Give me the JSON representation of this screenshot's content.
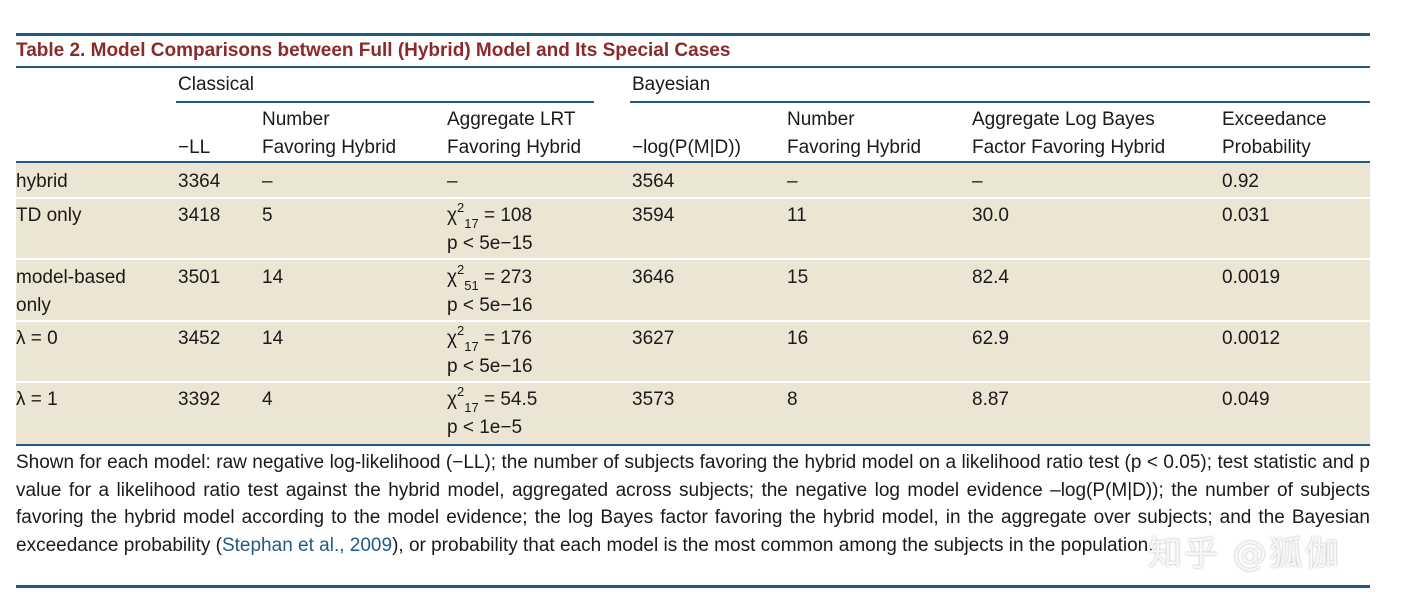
{
  "title": "Table 2.  Model Comparisons between Full (Hybrid) Model and Its Special Cases",
  "groups": {
    "classical": "Classical",
    "bayesian": "Bayesian"
  },
  "columns": {
    "ll": "−LL",
    "num_fav_1": "Number",
    "num_fav_2": "Favoring Hybrid",
    "lrt_1": "Aggregate LRT",
    "lrt_2": "Favoring Hybrid",
    "logp": "−log(P(M|D))",
    "num_bayes_1": "Number",
    "num_bayes_2": "Favoring Hybrid",
    "lbf_1": "Aggregate Log Bayes",
    "lbf_2": "Factor Favoring Hybrid",
    "exc_1": "Exceedance",
    "exc_2": "Probability"
  },
  "rows": [
    {
      "model": "hybrid",
      "model2": "",
      "ll": "3364",
      "nfav": "–",
      "chi": "",
      "df": "",
      "stat": "–",
      "p": "",
      "logp": "3564",
      "nbayes": "–",
      "lbf": "–",
      "exc": "0.92"
    },
    {
      "model": "TD only",
      "model2": "",
      "ll": "3418",
      "nfav": "5",
      "chi": "χ",
      "df": "17",
      "stat": " = 108",
      "p": "p < 5e−15",
      "logp": "3594",
      "nbayes": "11",
      "lbf": "30.0",
      "exc": "0.031"
    },
    {
      "model": "model-based",
      "model2": "only",
      "ll": "3501",
      "nfav": "14",
      "chi": "χ",
      "df": "51",
      "stat": " = 273",
      "p": "p < 5e−16",
      "logp": "3646",
      "nbayes": "15",
      "lbf": "82.4",
      "exc": "0.0019"
    },
    {
      "model": "λ = 0",
      "model2": "",
      "ll": "3452",
      "nfav": "14",
      "chi": "χ",
      "df": "17",
      "stat": " = 176",
      "p": "p < 5e−16",
      "logp": "3627",
      "nbayes": "16",
      "lbf": "62.9",
      "exc": "0.0012"
    },
    {
      "model": "λ = 1",
      "model2": "",
      "ll": "3392",
      "nfav": "4",
      "chi": "χ",
      "df": "17",
      "stat": " = 54.5",
      "p": "p < 1e−5",
      "logp": "3573",
      "nbayes": "8",
      "lbf": "8.87",
      "exc": "0.049"
    }
  ],
  "superscript": "2",
  "caption": {
    "before_link": "Shown for each model: raw negative log-likelihood (−LL); the number of subjects favoring the hybrid model on a likelihood ratio test (p < 0.05); test statistic and p value for a likelihood ratio test against the hybrid model, aggregated across subjects; the negative log model evidence –log(P(M|D)); the number of subjects favoring the hybrid model according to the model evidence; the log Bayes factor favoring the hybrid model, in the aggregate over subjects; and the Bayesian exceedance probability (",
    "link": "Stephan et al., 2009",
    "after_link": "), or probability that each model is the most common among the subjects in the population."
  },
  "watermark": "知乎 @狐伽",
  "colors": {
    "accent": "#1f5b8a",
    "title": "#8b2a2a",
    "band": "#ece5d3"
  }
}
